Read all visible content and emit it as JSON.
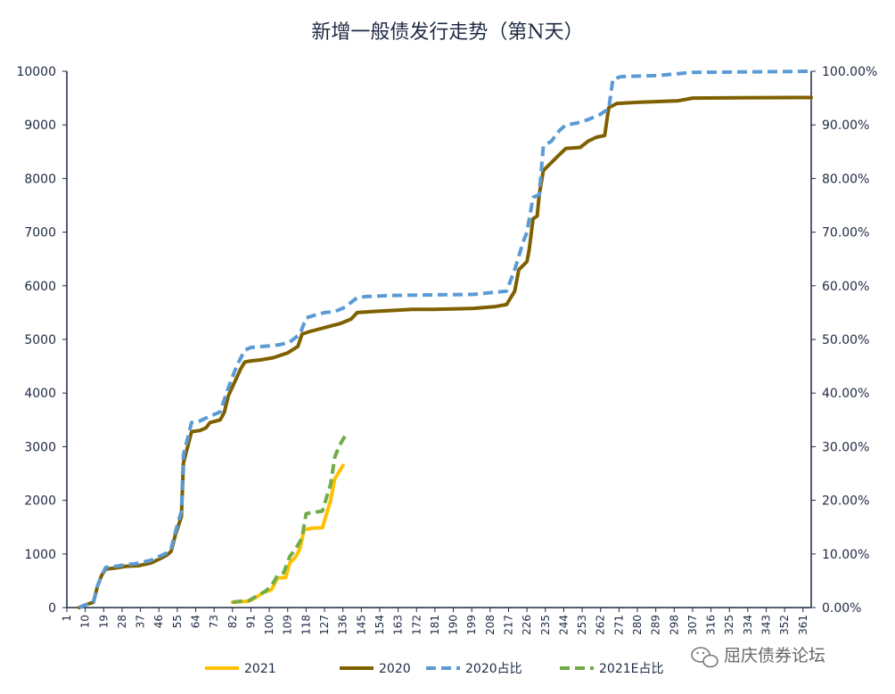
{
  "chart_data": {
    "type": "line",
    "title": "新增一般债发行走势（第N天）",
    "xlabel": "",
    "ylabel": "",
    "y2label": "",
    "xlim": [
      1,
      365
    ],
    "ylim": [
      0,
      10000
    ],
    "y2lim": [
      0,
      1
    ],
    "yticks": [
      "0",
      "1000",
      "2000",
      "3000",
      "4000",
      "5000",
      "6000",
      "7000",
      "8000",
      "9000",
      "10000"
    ],
    "y2ticks": [
      "0.00%",
      "10.00%",
      "20.00%",
      "30.00%",
      "40.00%",
      "50.00%",
      "60.00%",
      "70.00%",
      "80.00%",
      "90.00%",
      "100.00%"
    ],
    "xticks": [
      1,
      10,
      19,
      28,
      37,
      46,
      55,
      64,
      73,
      82,
      91,
      100,
      109,
      118,
      127,
      136,
      145,
      154,
      163,
      172,
      181,
      190,
      199,
      208,
      217,
      226,
      235,
      244,
      253,
      262,
      271,
      280,
      289,
      298,
      307,
      316,
      325,
      334,
      343,
      352,
      361
    ],
    "grid": false,
    "legend_position": "bottom",
    "series": [
      {
        "name": "2021",
        "axis": "left",
        "color": "#FFC000",
        "dash": "solid",
        "points": [
          [
            82,
            100
          ],
          [
            86,
            110
          ],
          [
            90,
            120
          ],
          [
            94,
            200
          ],
          [
            97,
            280
          ],
          [
            101,
            330
          ],
          [
            104,
            550
          ],
          [
            108,
            560
          ],
          [
            110,
            830
          ],
          [
            113,
            950
          ],
          [
            115,
            1100
          ],
          [
            117,
            1450
          ],
          [
            121,
            1480
          ],
          [
            126,
            1490
          ],
          [
            130,
            2000
          ],
          [
            132,
            2400
          ],
          [
            136,
            2650
          ]
        ]
      },
      {
        "name": "2020",
        "axis": "left",
        "color": "#7F6000",
        "dash": "solid",
        "points": [
          [
            7,
            0
          ],
          [
            10,
            50
          ],
          [
            14,
            100
          ],
          [
            16,
            400
          ],
          [
            18,
            600
          ],
          [
            20,
            720
          ],
          [
            25,
            740
          ],
          [
            30,
            770
          ],
          [
            36,
            780
          ],
          [
            42,
            830
          ],
          [
            46,
            900
          ],
          [
            50,
            980
          ],
          [
            52,
            1050
          ],
          [
            54,
            1350
          ],
          [
            57,
            1700
          ],
          [
            58,
            2700
          ],
          [
            62,
            3280
          ],
          [
            66,
            3300
          ],
          [
            69,
            3350
          ],
          [
            71,
            3450
          ],
          [
            76,
            3500
          ],
          [
            78,
            3640
          ],
          [
            80,
            3950
          ],
          [
            83,
            4200
          ],
          [
            86,
            4450
          ],
          [
            88,
            4580
          ],
          [
            91,
            4600
          ],
          [
            96,
            4620
          ],
          [
            102,
            4660
          ],
          [
            105,
            4700
          ],
          [
            109,
            4750
          ],
          [
            114,
            4870
          ],
          [
            116,
            5100
          ],
          [
            120,
            5150
          ],
          [
            125,
            5200
          ],
          [
            130,
            5250
          ],
          [
            135,
            5300
          ],
          [
            140,
            5380
          ],
          [
            143,
            5500
          ],
          [
            150,
            5520
          ],
          [
            160,
            5540
          ],
          [
            170,
            5560
          ],
          [
            180,
            5560
          ],
          [
            190,
            5570
          ],
          [
            200,
            5580
          ],
          [
            210,
            5610
          ],
          [
            216,
            5650
          ],
          [
            220,
            5900
          ],
          [
            222,
            6300
          ],
          [
            226,
            6450
          ],
          [
            227,
            6650
          ],
          [
            229,
            7250
          ],
          [
            231,
            7300
          ],
          [
            232,
            7700
          ],
          [
            234,
            8150
          ],
          [
            238,
            8300
          ],
          [
            242,
            8450
          ],
          [
            245,
            8560
          ],
          [
            252,
            8580
          ],
          [
            256,
            8700
          ],
          [
            260,
            8770
          ],
          [
            264,
            8800
          ],
          [
            266,
            9320
          ],
          [
            270,
            9400
          ],
          [
            280,
            9420
          ],
          [
            300,
            9450
          ],
          [
            307,
            9500
          ],
          [
            330,
            9505
          ],
          [
            360,
            9510
          ],
          [
            365,
            9510
          ]
        ]
      },
      {
        "name": "2020占比",
        "axis": "right",
        "color": "#5B9BD5",
        "dash": "dashed",
        "points": [
          [
            7,
            0
          ],
          [
            10,
            0.005
          ],
          [
            14,
            0.01
          ],
          [
            16,
            0.04
          ],
          [
            18,
            0.06
          ],
          [
            20,
            0.075
          ],
          [
            25,
            0.077
          ],
          [
            30,
            0.08
          ],
          [
            35,
            0.082
          ],
          [
            42,
            0.088
          ],
          [
            46,
            0.095
          ],
          [
            50,
            0.102
          ],
          [
            52,
            0.11
          ],
          [
            54,
            0.14
          ],
          [
            57,
            0.18
          ],
          [
            58,
            0.285
          ],
          [
            62,
            0.345
          ],
          [
            66,
            0.348
          ],
          [
            70,
            0.355
          ],
          [
            76,
            0.365
          ],
          [
            80,
            0.41
          ],
          [
            84,
            0.45
          ],
          [
            88,
            0.48
          ],
          [
            91,
            0.485
          ],
          [
            100,
            0.488
          ],
          [
            105,
            0.49
          ],
          [
            110,
            0.495
          ],
          [
            115,
            0.51
          ],
          [
            118,
            0.54
          ],
          [
            122,
            0.545
          ],
          [
            127,
            0.55
          ],
          [
            132,
            0.552
          ],
          [
            137,
            0.56
          ],
          [
            143,
            0.578
          ],
          [
            148,
            0.58
          ],
          [
            160,
            0.582
          ],
          [
            180,
            0.583
          ],
          [
            200,
            0.584
          ],
          [
            216,
            0.59
          ],
          [
            220,
            0.63
          ],
          [
            224,
            0.68
          ],
          [
            226,
            0.7
          ],
          [
            229,
            0.765
          ],
          [
            232,
            0.77
          ],
          [
            234,
            0.86
          ],
          [
            238,
            0.87
          ],
          [
            242,
            0.89
          ],
          [
            245,
            0.9
          ],
          [
            250,
            0.903
          ],
          [
            256,
            0.91
          ],
          [
            262,
            0.92
          ],
          [
            266,
            0.93
          ],
          [
            268,
            0.985
          ],
          [
            272,
            0.99
          ],
          [
            290,
            0.992
          ],
          [
            307,
            0.998
          ],
          [
            340,
            0.999
          ],
          [
            365,
            1.0
          ]
        ]
      },
      {
        "name": "2021E占比",
        "axis": "right",
        "color": "#70AD47",
        "dash": "dashed",
        "points": [
          [
            82,
            0.01
          ],
          [
            86,
            0.012
          ],
          [
            90,
            0.013
          ],
          [
            94,
            0.022
          ],
          [
            98,
            0.03
          ],
          [
            101,
            0.04
          ],
          [
            104,
            0.06
          ],
          [
            107,
            0.065
          ],
          [
            110,
            0.095
          ],
          [
            113,
            0.11
          ],
          [
            116,
            0.13
          ],
          [
            118,
            0.175
          ],
          [
            121,
            0.177
          ],
          [
            126,
            0.18
          ],
          [
            130,
            0.23
          ],
          [
            132,
            0.28
          ],
          [
            134,
            0.3
          ],
          [
            137,
            0.32
          ]
        ]
      }
    ]
  },
  "watermark": {
    "text": "屈庆债券论坛",
    "icon": "wechat-icon"
  }
}
